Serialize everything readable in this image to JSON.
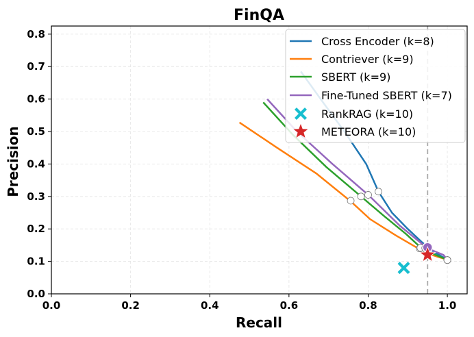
{
  "chart_data": {
    "type": "line",
    "title": "FinQA",
    "xlabel": "Recall",
    "ylabel": "Precision",
    "xlim": [
      0.0,
      1.05
    ],
    "ylim": [
      0.0,
      0.825
    ],
    "xticks": [
      0.0,
      0.2,
      0.4,
      0.6,
      0.8,
      1.0
    ],
    "xtick_labels": [
      "0.0",
      "0.2",
      "0.4",
      "0.6",
      "0.8",
      "1.0"
    ],
    "yticks": [
      0.0,
      0.1,
      0.2,
      0.3,
      0.4,
      0.5,
      0.6,
      0.7,
      0.8
    ],
    "ytick_labels": [
      "0.0",
      "0.1",
      "0.2",
      "0.3",
      "0.4",
      "0.5",
      "0.6",
      "0.7",
      "0.8"
    ],
    "grid": true,
    "legend_position": "top-right",
    "reference_line": {
      "x": 0.95,
      "style": "dashed",
      "color": "#b0b0b0"
    },
    "series": [
      {
        "name": "Cross Encoder (k=8)",
        "color": "#1f77b4",
        "x": [
          0.63,
          0.68,
          0.74,
          0.795,
          0.826,
          0.86,
          0.9,
          0.935,
          0.965,
          1.0
        ],
        "y": [
          0.685,
          0.6,
          0.5,
          0.4,
          0.315,
          0.25,
          0.2,
          0.16,
          0.13,
          0.105
        ],
        "marker": {
          "x": 0.826,
          "y": 0.315
        }
      },
      {
        "name": "Contriever (k=9)",
        "color": "#ff7f0e",
        "x": [
          0.475,
          0.57,
          0.67,
          0.756,
          0.805,
          0.87,
          0.926,
          0.96,
          1.0
        ],
        "y": [
          0.528,
          0.45,
          0.37,
          0.285,
          0.23,
          0.18,
          0.14,
          0.12,
          0.105
        ],
        "marker": {
          "x": 0.756,
          "y": 0.287
        }
      },
      {
        "name": "SBERT (k=9)",
        "color": "#2ca02c",
        "x": [
          0.535,
          0.61,
          0.695,
          0.782,
          0.84,
          0.895,
          0.935,
          0.97,
          1.0
        ],
        "y": [
          0.59,
          0.49,
          0.39,
          0.3,
          0.24,
          0.185,
          0.14,
          0.12,
          0.105
        ],
        "marker": {
          "x": 0.782,
          "y": 0.3
        }
      },
      {
        "name": "Fine-Tuned SBERT (k=7)",
        "color": "#9467bd",
        "x": [
          0.545,
          0.62,
          0.71,
          0.8,
          0.88,
          0.95,
          0.99,
          1.0
        ],
        "y": [
          0.6,
          0.5,
          0.4,
          0.305,
          0.21,
          0.14,
          0.12,
          0.105
        ],
        "marker": {
          "x": 0.8,
          "y": 0.305
        }
      }
    ],
    "special_points": [
      {
        "name": "RankRAG (k=10)",
        "x": 0.89,
        "y": 0.08,
        "color": "#17becf",
        "marker": "X"
      },
      {
        "name": "METEORA (k=10)",
        "x": 0.95,
        "y": 0.12,
        "color": "#d62728",
        "marker": "star"
      }
    ]
  }
}
